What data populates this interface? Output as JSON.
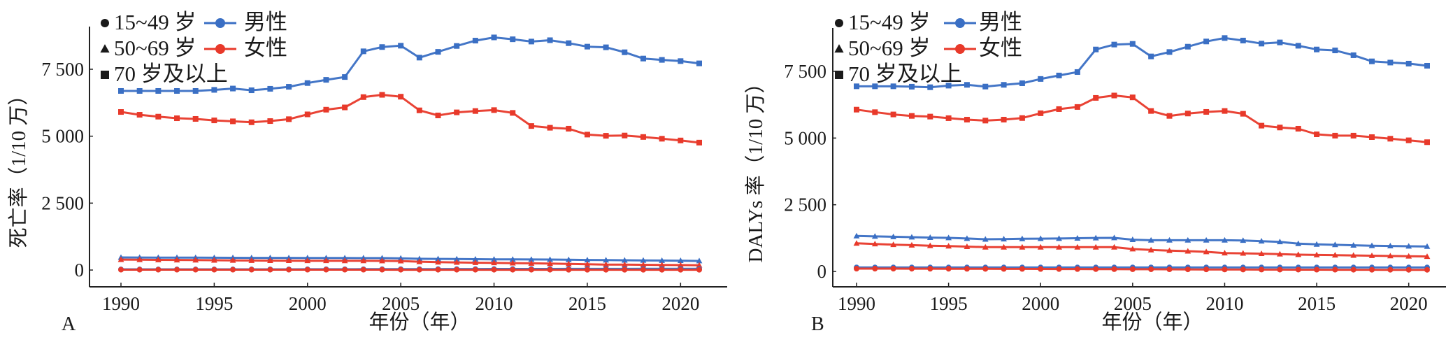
{
  "colors": {
    "male": "#3a6fc4",
    "female": "#e8392a",
    "axis": "#222222"
  },
  "legend": {
    "age_groups": [
      {
        "marker": "circle",
        "label": "15~49 岁"
      },
      {
        "marker": "triangle",
        "label": "50~69 岁"
      },
      {
        "marker": "square",
        "label": "70 岁及以上"
      }
    ],
    "sexes": [
      {
        "key": "male",
        "label": "男性"
      },
      {
        "key": "female",
        "label": "女性"
      }
    ]
  },
  "chart_data": [
    {
      "panel": "A",
      "type": "line",
      "title": "",
      "xlabel": "年份（年）",
      "ylabel": "死亡率（1/10 万）",
      "x": [
        1990,
        1991,
        1992,
        1993,
        1994,
        1995,
        1996,
        1997,
        1998,
        1999,
        2000,
        2001,
        2002,
        2003,
        2004,
        2005,
        2006,
        2007,
        2008,
        2009,
        2010,
        2011,
        2012,
        2013,
        2014,
        2015,
        2016,
        2017,
        2018,
        2019,
        2020,
        2021
      ],
      "xticks": [
        1990,
        1995,
        2000,
        2005,
        2010,
        2015,
        2020
      ],
      "xtick_labels": [
        "1990",
        "1995",
        "2000",
        "2005",
        "2010",
        "2015",
        "2020"
      ],
      "yticks": [
        0,
        2500,
        5000,
        7500
      ],
      "ytick_labels": [
        "0",
        "2 500",
        "5 000",
        "7 500"
      ],
      "xlim": [
        1987.6,
        2022.5
      ],
      "ylim": [
        -250,
        8900
      ],
      "grid": false,
      "legend_position": "top-left",
      "series": [
        {
          "name": "男性 70 岁及以上",
          "sex": "male",
          "marker": "square",
          "values": [
            6690,
            6690,
            6690,
            6690,
            6690,
            6730,
            6780,
            6715,
            6770,
            6845,
            6985,
            7105,
            7210,
            8170,
            8330,
            8380,
            7935,
            8150,
            8370,
            8570,
            8690,
            8620,
            8535,
            8585,
            8475,
            8345,
            8320,
            8135,
            7900,
            7850,
            7805,
            7720
          ]
        },
        {
          "name": "女性 70 岁及以上",
          "sex": "female",
          "marker": "square",
          "values": [
            5905,
            5800,
            5730,
            5670,
            5645,
            5590,
            5555,
            5520,
            5565,
            5635,
            5815,
            5990,
            6075,
            6460,
            6545,
            6475,
            5965,
            5775,
            5890,
            5940,
            5975,
            5870,
            5380,
            5315,
            5280,
            5060,
            5015,
            5025,
            4970,
            4905,
            4840,
            4760
          ]
        },
        {
          "name": "男性 50~69 岁",
          "sex": "male",
          "marker": "triangle",
          "values": [
            470,
            468,
            466,
            464,
            462,
            460,
            458,
            456,
            455,
            454,
            452,
            450,
            450,
            448,
            446,
            440,
            420,
            415,
            410,
            405,
            400,
            398,
            395,
            392,
            385,
            375,
            370,
            365,
            360,
            355,
            350,
            340
          ]
        },
        {
          "name": "女性 50~69 岁",
          "sex": "female",
          "marker": "triangle",
          "values": [
            390,
            385,
            380,
            375,
            370,
            365,
            360,
            355,
            352,
            350,
            348,
            346,
            345,
            344,
            342,
            336,
            310,
            295,
            285,
            275,
            268,
            260,
            250,
            240,
            230,
            215,
            205,
            200,
            195,
            190,
            185,
            180
          ]
        },
        {
          "name": "男性 15~49 岁",
          "sex": "male",
          "marker": "circle",
          "values": [
            25,
            25,
            25,
            25,
            25,
            25,
            25,
            25,
            26,
            27,
            28,
            29,
            30,
            31,
            32,
            33,
            34,
            35,
            36,
            37,
            38,
            39,
            40,
            40,
            41,
            42,
            43,
            43,
            44,
            44,
            45,
            45
          ]
        },
        {
          "name": "女性 15~49 岁",
          "sex": "female",
          "marker": "circle",
          "values": [
            12,
            12,
            12,
            12,
            12,
            12,
            12,
            12,
            12,
            12,
            12,
            12,
            12,
            12,
            12,
            11,
            11,
            11,
            11,
            11,
            11,
            11,
            11,
            11,
            10,
            10,
            10,
            10,
            10,
            10,
            10,
            10
          ]
        }
      ]
    },
    {
      "panel": "B",
      "type": "line",
      "title": "",
      "xlabel": "年份（年）",
      "ylabel": "DALYs 率（1/10 万）",
      "x": [
        1990,
        1991,
        1992,
        1993,
        1994,
        1995,
        1996,
        1997,
        1998,
        1999,
        2000,
        2001,
        2002,
        2003,
        2004,
        2005,
        2006,
        2007,
        2008,
        2009,
        2010,
        2011,
        2012,
        2013,
        2014,
        2015,
        2016,
        2017,
        2018,
        2019,
        2020,
        2021
      ],
      "xticks": [
        1990,
        1995,
        2000,
        2005,
        2010,
        2015,
        2020
      ],
      "xtick_labels": [
        "1990",
        "1995",
        "2000",
        "2005",
        "2010",
        "2015",
        "2020"
      ],
      "yticks": [
        0,
        2500,
        5000,
        7500
      ],
      "ytick_labels": [
        "0",
        "2 500",
        "5 000",
        "7 500"
      ],
      "xlim": [
        1987.6,
        2022.5
      ],
      "ylim": [
        -250,
        8900
      ],
      "grid": false,
      "legend_position": "top-left",
      "series": [
        {
          "name": "男性 70 岁及以上",
          "sex": "male",
          "marker": "square",
          "values": [
            6940,
            6940,
            6940,
            6925,
            6905,
            6965,
            6995,
            6930,
            6995,
            7055,
            7215,
            7345,
            7475,
            8320,
            8505,
            8530,
            8060,
            8225,
            8425,
            8620,
            8750,
            8655,
            8540,
            8585,
            8460,
            8320,
            8285,
            8105,
            7875,
            7830,
            7790,
            7710
          ]
        },
        {
          "name": "女性 70 岁及以上",
          "sex": "female",
          "marker": "square",
          "values": [
            6065,
            5970,
            5885,
            5830,
            5805,
            5745,
            5690,
            5655,
            5690,
            5750,
            5930,
            6085,
            6165,
            6505,
            6595,
            6525,
            6015,
            5830,
            5920,
            5980,
            6015,
            5910,
            5465,
            5395,
            5350,
            5140,
            5090,
            5090,
            5035,
            4975,
            4915,
            4845
          ]
        },
        {
          "name": "男性 50~69 岁",
          "sex": "male",
          "marker": "triangle",
          "values": [
            1330,
            1315,
            1300,
            1285,
            1270,
            1260,
            1235,
            1205,
            1215,
            1225,
            1230,
            1235,
            1245,
            1255,
            1260,
            1190,
            1170,
            1170,
            1170,
            1170,
            1170,
            1160,
            1135,
            1110,
            1040,
            1015,
            1000,
            980,
            965,
            955,
            945,
            935
          ]
        },
        {
          "name": "女性 50~69 岁",
          "sex": "female",
          "marker": "triangle",
          "values": [
            1055,
            1030,
            1005,
            985,
            965,
            950,
            930,
            910,
            910,
            910,
            910,
            910,
            910,
            910,
            910,
            840,
            805,
            780,
            760,
            735,
            690,
            680,
            665,
            650,
            630,
            620,
            610,
            600,
            590,
            580,
            570,
            560
          ]
        },
        {
          "name": "男性 15~49 岁",
          "sex": "male",
          "marker": "circle",
          "values": [
            150,
            150,
            150,
            150,
            150,
            150,
            150,
            150,
            150,
            150,
            150,
            150,
            150,
            150,
            150,
            152,
            152,
            152,
            152,
            152,
            150,
            150,
            150,
            150,
            150,
            150,
            150,
            150,
            150,
            150,
            150,
            150
          ]
        },
        {
          "name": "女性 15~49 岁",
          "sex": "female",
          "marker": "circle",
          "values": [
            105,
            105,
            104,
            103,
            102,
            100,
            98,
            96,
            95,
            94,
            92,
            90,
            88,
            86,
            85,
            82,
            80,
            78,
            76,
            74,
            72,
            70,
            68,
            67,
            66,
            65,
            64,
            63,
            62,
            61,
            60,
            60
          ]
        }
      ]
    }
  ]
}
